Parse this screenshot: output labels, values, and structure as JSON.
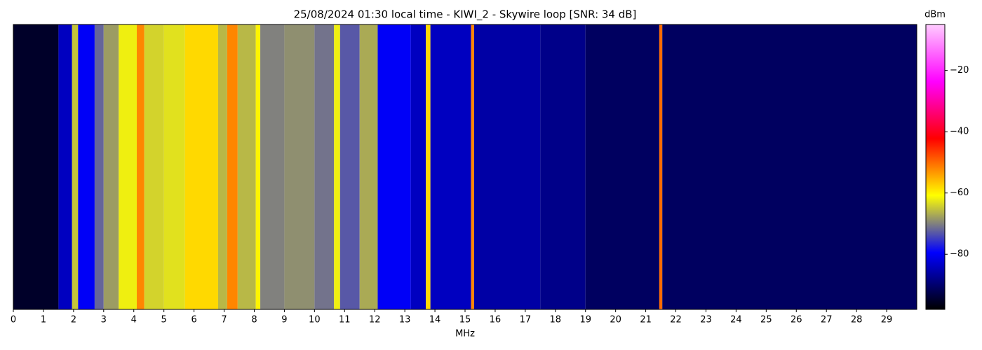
{
  "chart_data": {
    "type": "heatmap",
    "title": "25/08/2024 01:30 local time - KIWI_2 - Skywire loop [SNR: 34 dB]",
    "xlabel": "MHz",
    "colorbar_label": "dBm",
    "x": [
      0,
      1.5,
      1.95,
      2.15,
      2.7,
      3.0,
      3.5,
      4.1,
      4.35,
      5.0,
      5.7,
      6.8,
      7.1,
      7.45,
      8.05,
      8.2,
      9.0,
      10.0,
      10.65,
      10.85,
      11.5,
      12.1,
      13.2,
      13.7,
      13.85,
      15.2,
      15.3,
      17.5,
      19.0,
      21.45,
      21.55
    ],
    "values": [
      -95,
      -84,
      -65,
      -80,
      -72,
      -68,
      -62,
      -52,
      -64,
      -63,
      -58,
      -66,
      -52,
      -66,
      -60,
      -70,
      -69,
      -71,
      -62,
      -73,
      -67,
      -80,
      -84,
      -58,
      -84,
      -52,
      -86,
      -88,
      -91,
      -50,
      -91
    ],
    "xlim": [
      0,
      30
    ],
    "xticks": [
      0,
      1,
      2,
      3,
      4,
      5,
      6,
      7,
      8,
      9,
      10,
      11,
      12,
      13,
      14,
      15,
      16,
      17,
      18,
      19,
      20,
      21,
      22,
      23,
      24,
      25,
      26,
      27,
      28,
      29
    ],
    "clim": [
      -98,
      -5
    ],
    "cticks": [
      {
        "value": -80,
        "label": "−80"
      },
      {
        "value": -60,
        "label": "−60"
      },
      {
        "value": -40,
        "label": "−40"
      },
      {
        "value": -20,
        "label": "−20"
      }
    ],
    "colormap": [
      "#000000",
      "#0000ff",
      "#ffff00",
      "#ff0000",
      "#ff00ff",
      "#ffccff"
    ]
  }
}
